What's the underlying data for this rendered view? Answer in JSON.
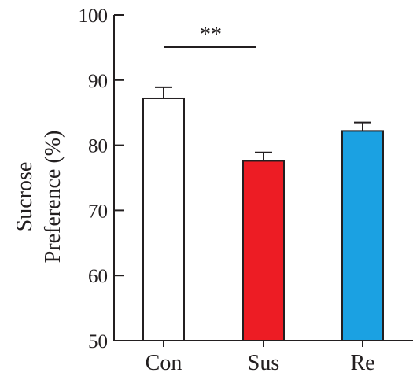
{
  "chart_data": {
    "type": "bar",
    "title": "",
    "xlabel": "",
    "ylabel_lines": [
      "Sucrose",
      "Preference (%)"
    ],
    "ylim": [
      50,
      100
    ],
    "yticks": [
      50,
      60,
      70,
      80,
      90,
      100
    ],
    "categories": [
      "Con",
      "Sus",
      "Re"
    ],
    "values": [
      87.2,
      77.6,
      82.2
    ],
    "errors": [
      1.7,
      1.3,
      1.3
    ],
    "colors": [
      "#ffffff",
      "#ed1c24",
      "#1ba1e2"
    ],
    "edge_color": "#231f20",
    "grid": false,
    "significance": [
      {
        "from": 0,
        "to": 1,
        "label": "**"
      }
    ]
  }
}
